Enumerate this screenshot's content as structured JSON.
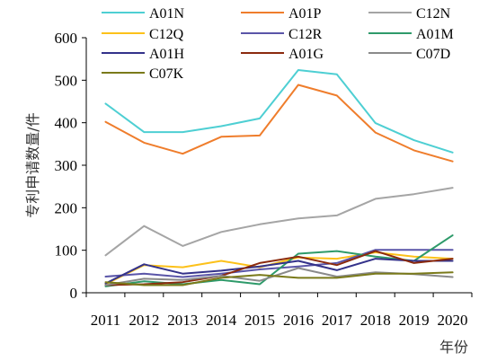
{
  "chart_data": {
    "type": "line",
    "xlabel": "年份",
    "ylabel": "专利申请数量/件",
    "ylim": [
      0,
      600
    ],
    "yticks": [
      0,
      100,
      200,
      300,
      400,
      500,
      600
    ],
    "categories": [
      "2011",
      "2012",
      "2013",
      "2014",
      "2015",
      "2016",
      "2017",
      "2018",
      "2019",
      "2020"
    ],
    "grid": false,
    "legend_position": "top",
    "series": [
      {
        "name": "A01N",
        "color": "#4ecfd3",
        "values": [
          445,
          378,
          378,
          392,
          410,
          524,
          514,
          399,
          359,
          330
        ]
      },
      {
        "name": "A01P",
        "color": "#ef7d2c",
        "values": [
          402,
          353,
          327,
          367,
          370,
          489,
          464,
          377,
          335,
          309
        ]
      },
      {
        "name": "C12N",
        "color": "#a5a5a5",
        "values": [
          88,
          157,
          110,
          143,
          161,
          175,
          182,
          221,
          232,
          247
        ]
      },
      {
        "name": "C12Q",
        "color": "#fcc11a",
        "values": [
          20,
          65,
          60,
          75,
          60,
          83,
          80,
          95,
          85,
          80
        ]
      },
      {
        "name": "C12R",
        "color": "#5a55a8",
        "values": [
          38,
          45,
          37,
          45,
          55,
          62,
          70,
          101,
          101,
          101
        ]
      },
      {
        "name": "A01M",
        "color": "#2e9a6a",
        "values": [
          15,
          27,
          20,
          30,
          20,
          92,
          98,
          85,
          75,
          135
        ]
      },
      {
        "name": "A01H",
        "color": "#34328a",
        "values": [
          22,
          67,
          45,
          52,
          62,
          75,
          53,
          80,
          75,
          75
        ]
      },
      {
        "name": "A01G",
        "color": "#8b2a0e",
        "values": [
          18,
          20,
          25,
          40,
          70,
          85,
          65,
          98,
          70,
          80
        ]
      },
      {
        "name": "C07D",
        "color": "#8a8a8a",
        "values": [
          18,
          33,
          30,
          40,
          28,
          58,
          38,
          48,
          44,
          37
        ]
      },
      {
        "name": "C07K",
        "color": "#7a7a1a",
        "values": [
          25,
          18,
          18,
          35,
          42,
          35,
          35,
          45,
          45,
          48
        ]
      }
    ]
  }
}
